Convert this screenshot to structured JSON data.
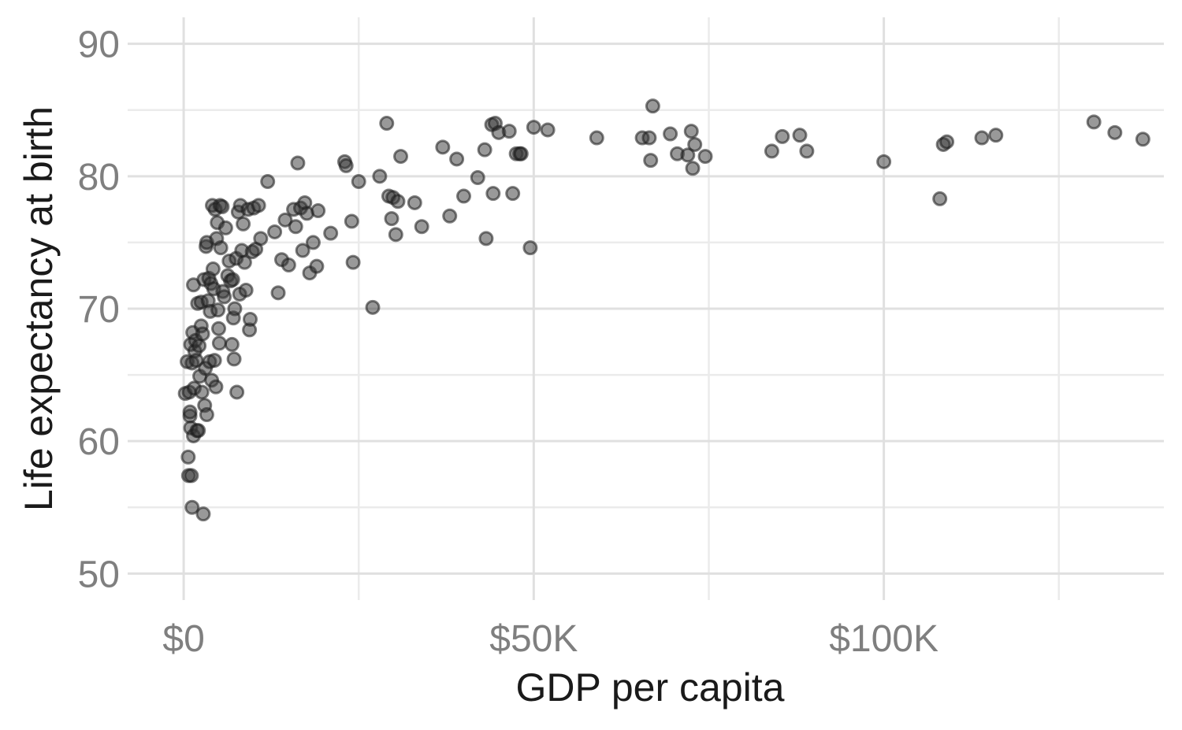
{
  "chart_data": {
    "type": "scatter",
    "title": "",
    "xlabel": "GDP per capita",
    "ylabel": "Life expectancy at birth",
    "xlim": [
      -8000,
      140000
    ],
    "ylim": [
      48,
      92
    ],
    "x_ticks": [
      0,
      50000,
      100000
    ],
    "x_tick_labels": [
      "$0",
      "$50K",
      "$100K"
    ],
    "x_minor_ticks": [
      25000,
      75000,
      125000
    ],
    "y_ticks": [
      50,
      60,
      70,
      80,
      90
    ],
    "y_tick_labels": [
      "50",
      "60",
      "70",
      "80",
      "90"
    ],
    "y_minor_ticks": [
      55,
      65,
      75,
      85
    ],
    "grid": true,
    "legend": "none",
    "colors": {
      "point": "#333333",
      "point_stroke": "#1a1a1a",
      "grid": "#e0e0e0"
    },
    "points": [
      [
        230,
        63.6
      ],
      [
        500,
        66.0
      ],
      [
        650,
        58.8
      ],
      [
        700,
        57.4
      ],
      [
        800,
        63.7
      ],
      [
        900,
        61.9
      ],
      [
        900,
        62.2
      ],
      [
        1000,
        67.3
      ],
      [
        1000,
        61.0
      ],
      [
        1100,
        57.4
      ],
      [
        1200,
        55.0
      ],
      [
        1200,
        65.9
      ],
      [
        1300,
        68.2
      ],
      [
        1400,
        71.8
      ],
      [
        1400,
        60.4
      ],
      [
        1500,
        64.0
      ],
      [
        1600,
        66.8
      ],
      [
        1700,
        67.6
      ],
      [
        1800,
        66.1
      ],
      [
        1900,
        60.8
      ],
      [
        2000,
        70.4
      ],
      [
        2100,
        60.8
      ],
      [
        2200,
        67.2
      ],
      [
        2300,
        64.9
      ],
      [
        2500,
        68.7
      ],
      [
        2500,
        70.5
      ],
      [
        2600,
        63.7
      ],
      [
        2700,
        68.1
      ],
      [
        2800,
        54.5
      ],
      [
        2900,
        72.2
      ],
      [
        3000,
        62.7
      ],
      [
        3100,
        65.5
      ],
      [
        3200,
        74.7
      ],
      [
        3300,
        75.0
      ],
      [
        3300,
        62.0
      ],
      [
        3500,
        70.6
      ],
      [
        3600,
        72.3
      ],
      [
        3700,
        66.0
      ],
      [
        3800,
        69.8
      ],
      [
        3900,
        71.9
      ],
      [
        4000,
        64.6
      ],
      [
        4100,
        77.8
      ],
      [
        4200,
        73.0
      ],
      [
        4300,
        71.5
      ],
      [
        4400,
        66.1
      ],
      [
        4500,
        77.5
      ],
      [
        4600,
        64.1
      ],
      [
        4700,
        75.3
      ],
      [
        4800,
        76.5
      ],
      [
        4900,
        69.9
      ],
      [
        5000,
        68.5
      ],
      [
        5100,
        67.4
      ],
      [
        5200,
        77.8
      ],
      [
        5300,
        74.6
      ],
      [
        5500,
        77.7
      ],
      [
        5600,
        71.3
      ],
      [
        5800,
        70.9
      ],
      [
        6000,
        76.1
      ],
      [
        6300,
        72.5
      ],
      [
        6500,
        73.6
      ],
      [
        6700,
        72.1
      ],
      [
        6900,
        67.3
      ],
      [
        7000,
        72.2
      ],
      [
        7100,
        69.3
      ],
      [
        7200,
        66.2
      ],
      [
        7300,
        70.0
      ],
      [
        7500,
        73.8
      ],
      [
        7600,
        63.7
      ],
      [
        7800,
        77.3
      ],
      [
        8000,
        71.1
      ],
      [
        8100,
        77.8
      ],
      [
        8300,
        74.4
      ],
      [
        8500,
        76.4
      ],
      [
        8700,
        73.5
      ],
      [
        8900,
        71.4
      ],
      [
        9200,
        77.5
      ],
      [
        9400,
        68.4
      ],
      [
        9500,
        69.2
      ],
      [
        9800,
        74.3
      ],
      [
        10000,
        77.6
      ],
      [
        10300,
        74.5
      ],
      [
        10700,
        77.8
      ],
      [
        11000,
        75.3
      ],
      [
        12000,
        79.6
      ],
      [
        13000,
        75.8
      ],
      [
        13500,
        71.2
      ],
      [
        14000,
        73.7
      ],
      [
        14500,
        76.7
      ],
      [
        15000,
        73.3
      ],
      [
        15700,
        77.5
      ],
      [
        16000,
        76.2
      ],
      [
        16300,
        81.0
      ],
      [
        16700,
        77.6
      ],
      [
        17000,
        74.4
      ],
      [
        17300,
        78.0
      ],
      [
        17600,
        77.2
      ],
      [
        18000,
        72.7
      ],
      [
        18500,
        75.0
      ],
      [
        19000,
        73.2
      ],
      [
        19200,
        77.4
      ],
      [
        21000,
        75.7
      ],
      [
        23000,
        81.1
      ],
      [
        23200,
        80.8
      ],
      [
        24000,
        76.6
      ],
      [
        24200,
        73.5
      ],
      [
        25000,
        79.6
      ],
      [
        27000,
        70.1
      ],
      [
        28000,
        80.0
      ],
      [
        29000,
        84.0
      ],
      [
        29300,
        78.5
      ],
      [
        29700,
        76.8
      ],
      [
        29900,
        78.4
      ],
      [
        30300,
        75.6
      ],
      [
        30600,
        78.1
      ],
      [
        31000,
        81.5
      ],
      [
        33000,
        78.0
      ],
      [
        34000,
        76.2
      ],
      [
        37000,
        82.2
      ],
      [
        38000,
        77.0
      ],
      [
        39000,
        81.3
      ],
      [
        40000,
        78.5
      ],
      [
        42000,
        79.9
      ],
      [
        43000,
        82.0
      ],
      [
        43200,
        75.3
      ],
      [
        44000,
        83.9
      ],
      [
        44200,
        78.7
      ],
      [
        44500,
        84.0
      ],
      [
        45000,
        83.3
      ],
      [
        46500,
        83.4
      ],
      [
        47000,
        78.7
      ],
      [
        47500,
        81.7
      ],
      [
        48000,
        81.7
      ],
      [
        48200,
        81.7
      ],
      [
        49500,
        74.6
      ],
      [
        50000,
        83.7
      ],
      [
        52000,
        83.5
      ],
      [
        59000,
        82.9
      ],
      [
        65500,
        82.9
      ],
      [
        66500,
        82.9
      ],
      [
        66700,
        81.2
      ],
      [
        67000,
        85.3
      ],
      [
        69500,
        83.2
      ],
      [
        70500,
        81.7
      ],
      [
        72000,
        81.6
      ],
      [
        72500,
        83.4
      ],
      [
        72700,
        80.6
      ],
      [
        73000,
        82.4
      ],
      [
        74500,
        81.5
      ],
      [
        84000,
        81.9
      ],
      [
        85500,
        83.0
      ],
      [
        88000,
        83.1
      ],
      [
        89000,
        81.9
      ],
      [
        100000,
        81.1
      ],
      [
        108000,
        78.3
      ],
      [
        108500,
        82.4
      ],
      [
        109000,
        82.6
      ],
      [
        114000,
        82.9
      ],
      [
        116000,
        83.1
      ],
      [
        130000,
        84.1
      ],
      [
        137000,
        82.8
      ],
      [
        133000,
        83.3
      ]
    ]
  }
}
